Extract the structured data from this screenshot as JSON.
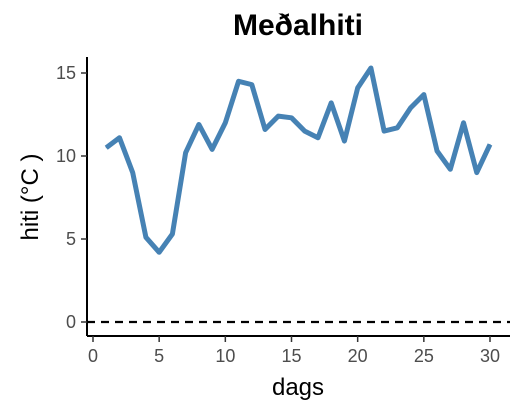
{
  "chart_data": {
    "type": "line",
    "title": "Meðalhiti",
    "xlabel": "dags",
    "ylabel": "hiti (°C )",
    "xlim": [
      0,
      30
    ],
    "ylim": [
      0,
      15
    ],
    "xticks": [
      0,
      5,
      10,
      15,
      20,
      25,
      30
    ],
    "yticks": [
      0,
      5,
      10,
      15
    ],
    "xtick_labels": [
      "0",
      "5",
      "10",
      "15",
      "20",
      "25",
      "30"
    ],
    "ytick_labels": [
      "0",
      "5",
      "10",
      "15"
    ],
    "grid": false,
    "legend": "none",
    "reference_line": {
      "y": 0,
      "style": "dashed",
      "color": "#000000"
    },
    "series": [
      {
        "color": "#4682b4",
        "x": [
          1,
          2,
          3,
          4,
          5,
          6,
          7,
          8,
          9,
          10,
          11,
          12,
          13,
          14,
          15,
          16,
          17,
          18,
          19,
          20,
          21,
          22,
          23,
          24,
          25,
          26,
          27,
          28,
          29,
          30
        ],
        "values": [
          10.5,
          11.1,
          9.0,
          5.1,
          4.2,
          5.3,
          10.2,
          11.9,
          10.4,
          12.0,
          14.5,
          14.3,
          11.6,
          12.4,
          12.3,
          11.5,
          11.1,
          13.2,
          10.9,
          14.1,
          15.3,
          11.5,
          11.7,
          12.9,
          13.7,
          10.3,
          9.2,
          12.0,
          9.0,
          10.7
        ]
      }
    ]
  }
}
